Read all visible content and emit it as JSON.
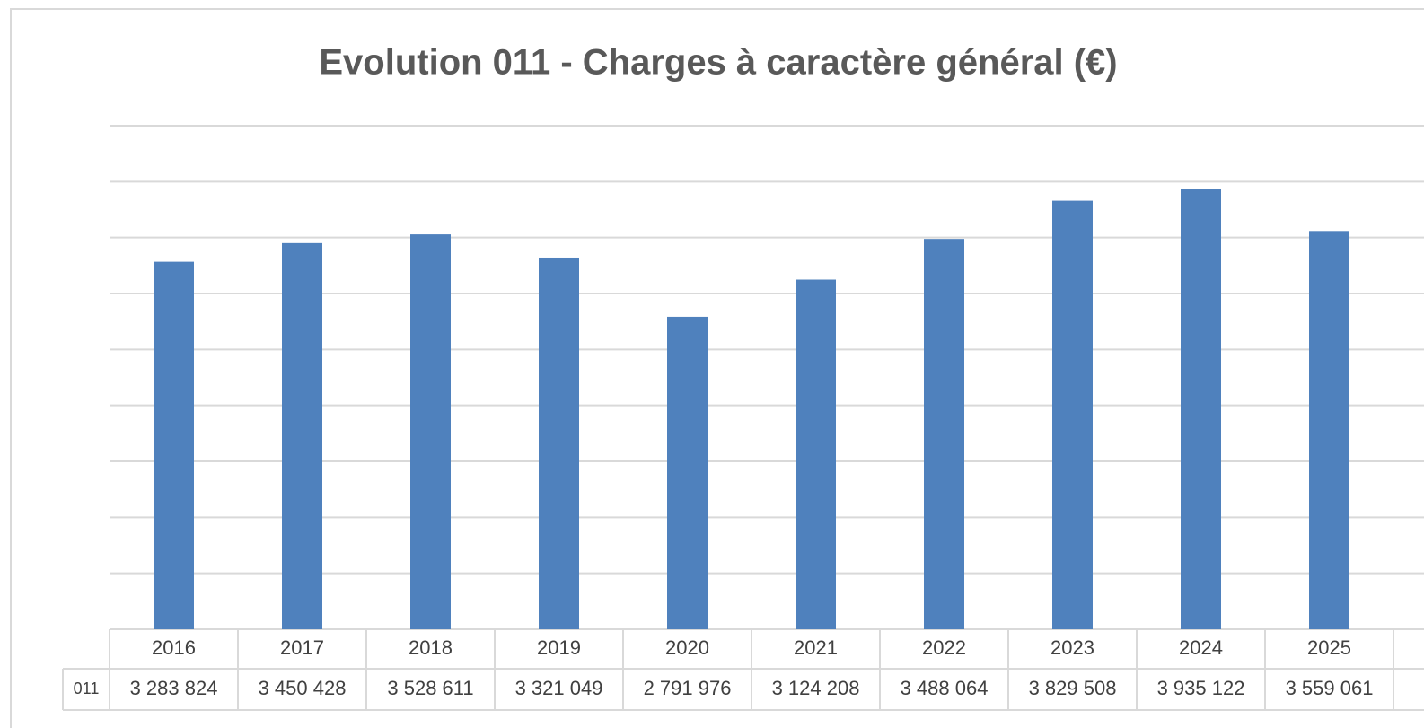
{
  "chart_data": {
    "type": "bar",
    "title": "Evolution 011 - Charges à caractère général (€)",
    "categories": [
      "2016",
      "2017",
      "2018",
      "2019",
      "2020",
      "2021",
      "2022",
      "2023",
      "2024",
      "2025"
    ],
    "series": [
      {
        "name": "011",
        "color": "#4f81bd",
        "values": [
          3283824,
          3450428,
          3528611,
          3321049,
          2791976,
          3124208,
          3488064,
          3829508,
          3935122,
          3559061
        ],
        "value_labels": [
          "3 283 824",
          "3 450 428",
          "3 528 611",
          "3 321 049",
          "2 791 976",
          "3 124 208",
          "3 488 064",
          "3 829 508",
          "3 935 122",
          "3 559 061"
        ]
      }
    ],
    "ylim": [
      0,
      4500000
    ],
    "yticks": [
      0,
      500000,
      1000000,
      1500000,
      2000000,
      2500000,
      3000000,
      3500000,
      4000000,
      4500000
    ],
    "grid": true,
    "data_table": true
  }
}
